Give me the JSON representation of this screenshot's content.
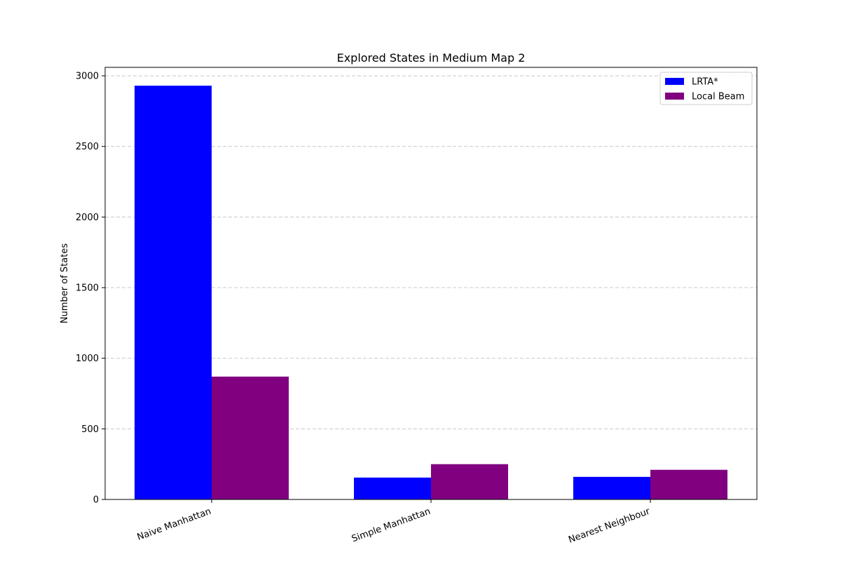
{
  "chart_data": {
    "type": "bar",
    "title": "Explored States in Medium Map 2",
    "xlabel": "",
    "ylabel": "Number of States",
    "categories": [
      "Naive Manhattan",
      "Simple Manhattan",
      "Nearest Neighbour"
    ],
    "series": [
      {
        "name": "LRTA*",
        "color": "#0000ff",
        "values": [
          2930,
          155,
          160
        ]
      },
      {
        "name": "Local Beam",
        "color": "#800080",
        "values": [
          870,
          250,
          210
        ]
      }
    ],
    "ylim": [
      0,
      3060
    ],
    "yticks": [
      0,
      500,
      1000,
      1500,
      2000,
      2500,
      3000
    ],
    "ytick_labels": [
      "0",
      "500",
      "1000",
      "1500",
      "2000",
      "2500",
      "3000"
    ],
    "grid": {
      "y": true,
      "style": "dashed",
      "color": "#c8c8c8"
    },
    "legend": {
      "placement": "top-right"
    },
    "xtick_rotation_deg": -20
  }
}
